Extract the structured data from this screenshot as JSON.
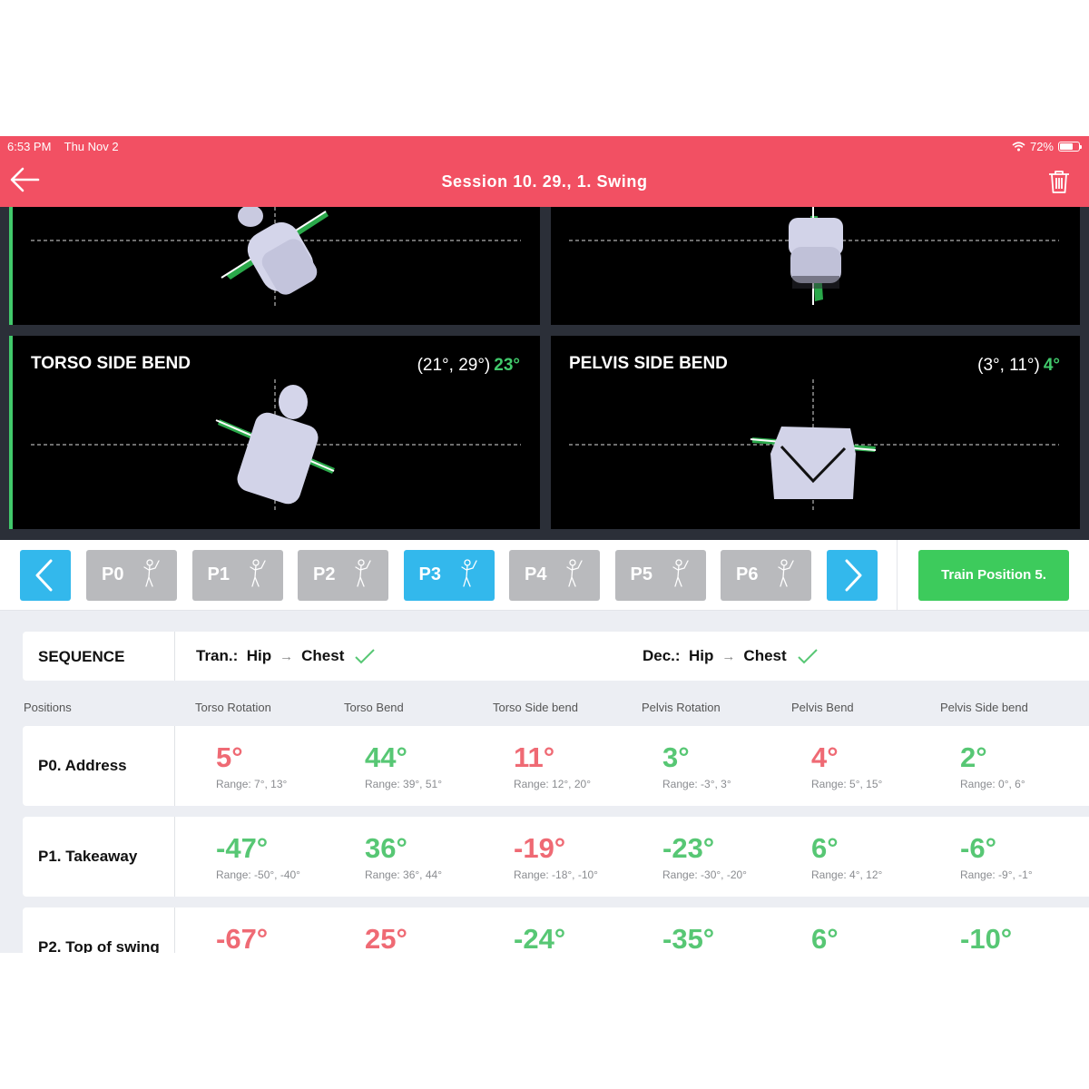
{
  "status": {
    "time": "6:53 PM",
    "date": "Thu Nov 2",
    "battery": "72%",
    "battery_level": 0.72
  },
  "nav": {
    "title": "Session 10. 29., 1. Swing"
  },
  "panels": {
    "torso_side_bend": {
      "title": "TORSO SIDE BEND",
      "values": "(21°, 29°)",
      "current": "23°"
    },
    "pelvis_side_bend": {
      "title": "PELVIS SIDE BEND",
      "values": "(3°, 11°)",
      "current": "4°"
    }
  },
  "positions": [
    "P0",
    "P1",
    "P2",
    "P3",
    "P4",
    "P5",
    "P6"
  ],
  "active_position": "P3",
  "train_button": "Train Position 5.",
  "sequence": {
    "label": "SEQUENCE",
    "transition": {
      "label": "Tran.:",
      "from": "Hip",
      "to": "Chest"
    },
    "deceleration": {
      "label": "Dec.:",
      "from": "Hip",
      "to": "Chest"
    }
  },
  "columns": [
    "Positions",
    "Torso Rotation",
    "Torso Bend",
    "Torso Side bend",
    "Pelvis Rotation",
    "Pelvis Bend",
    "Pelvis Side bend"
  ],
  "rows": [
    {
      "label": "P0. Address",
      "cells": [
        {
          "value": "5°",
          "range": "Range: 7°, 13°",
          "status": "red"
        },
        {
          "value": "44°",
          "range": "Range: 39°, 51°",
          "status": "green"
        },
        {
          "value": "11°",
          "range": "Range: 12°, 20°",
          "status": "red"
        },
        {
          "value": "3°",
          "range": "Range: -3°, 3°",
          "status": "green"
        },
        {
          "value": "4°",
          "range": "Range: 5°, 15°",
          "status": "red"
        },
        {
          "value": "2°",
          "range": "Range: 0°, 6°",
          "status": "green"
        }
      ]
    },
    {
      "label": "P1. Takeaway",
      "cells": [
        {
          "value": "-47°",
          "range": "Range: -50°, -40°",
          "status": "green"
        },
        {
          "value": "36°",
          "range": "Range: 36°, 44°",
          "status": "green"
        },
        {
          "value": "-19°",
          "range": "Range: -18°, -10°",
          "status": "red"
        },
        {
          "value": "-23°",
          "range": "Range: -30°, -20°",
          "status": "green"
        },
        {
          "value": "6°",
          "range": "Range: 4°, 12°",
          "status": "green"
        },
        {
          "value": "-6°",
          "range": "Range: -9°, -1°",
          "status": "green"
        }
      ]
    },
    {
      "label": "P2. Top of swing",
      "cells": [
        {
          "value": "-67°",
          "range": "",
          "status": "red"
        },
        {
          "value": "25°",
          "range": "",
          "status": "red"
        },
        {
          "value": "-24°",
          "range": "",
          "status": "green"
        },
        {
          "value": "-35°",
          "range": "",
          "status": "green"
        },
        {
          "value": "6°",
          "range": "",
          "status": "green"
        },
        {
          "value": "-10°",
          "range": "",
          "status": "green"
        }
      ]
    }
  ],
  "colors": {
    "header": "#f25063",
    "accent_blue": "#33b8ec",
    "good": "#57c774",
    "bad": "#ef6a74",
    "train": "#3dcb5c"
  }
}
